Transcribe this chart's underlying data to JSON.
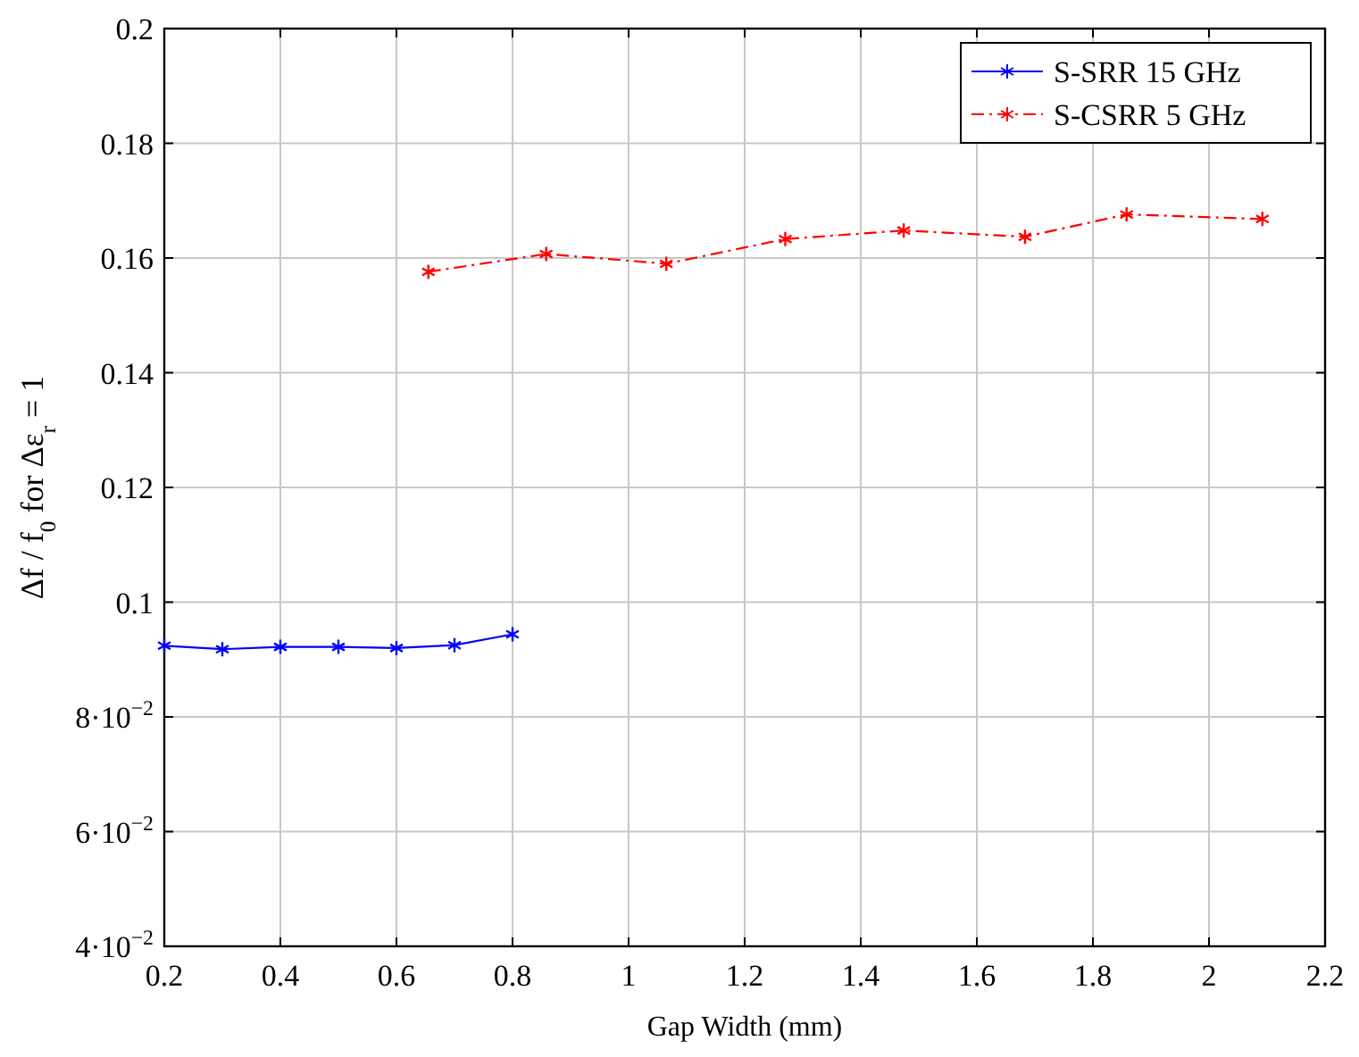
{
  "chart_data": {
    "type": "line",
    "xlabel": "Gap Width (mm)",
    "ylabel": "Δf / f$_{0}$ for Δε$_{r}$ = 1",
    "xlim": [
      0.2,
      2.2
    ],
    "xticks": [
      0.2,
      0.4,
      0.6,
      0.8,
      1,
      1.2,
      1.4,
      1.6,
      1.8,
      2,
      2.2
    ],
    "ylim": [
      0.04,
      0.2
    ],
    "yticks": [
      {
        "value": 0.04,
        "label": "4·10$^{−2}$"
      },
      {
        "value": 0.06,
        "label": "6·10$^{−2}$"
      },
      {
        "value": 0.08,
        "label": "8·10$^{−2}$"
      },
      0.1,
      0.12,
      0.14,
      0.16,
      0.18,
      0.2
    ],
    "grid": true,
    "legend": "top right",
    "marker": "cross",
    "series": [
      {
        "name": "S-SRR 15 GHz",
        "color": "#0000ff",
        "line_style": "solid",
        "x": [
          0.2,
          0.3,
          0.4,
          0.5,
          0.6,
          0.7,
          0.8
        ],
        "values": [
          0.0924,
          0.0918,
          0.0922,
          0.0922,
          0.092,
          0.0925,
          0.0944
        ]
      },
      {
        "name": "S-CSRR 5 GHz",
        "color": "#ff0000",
        "line_style": "dashed",
        "x": [
          0.655,
          0.858,
          1.065,
          1.27,
          1.474,
          1.683,
          1.858,
          2.092
        ],
        "values": [
          0.1576,
          0.1607,
          0.159,
          0.1633,
          0.1648,
          0.1637,
          0.1676,
          0.1668
        ]
      }
    ]
  }
}
